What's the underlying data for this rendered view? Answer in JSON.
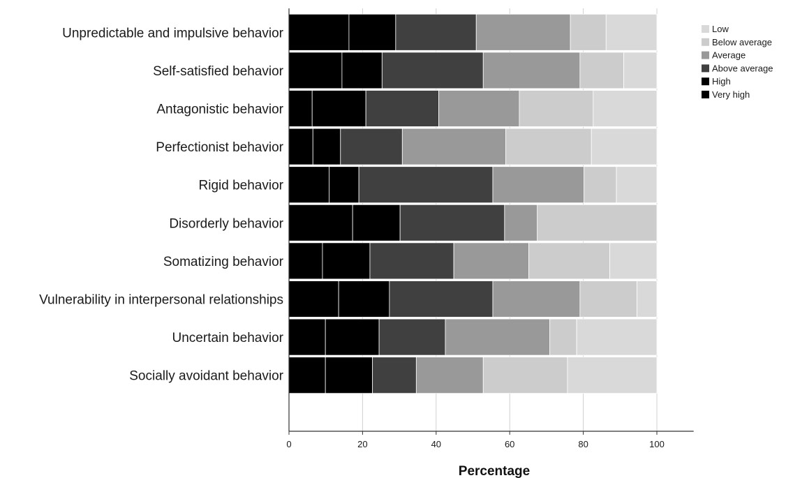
{
  "chart_data": {
    "type": "bar",
    "orientation": "horizontal",
    "stacked": true,
    "title": "",
    "xlabel": "Percentage",
    "ylabel": "",
    "xlim": [
      0,
      110
    ],
    "xticks": [
      0,
      20,
      40,
      60,
      80,
      100
    ],
    "grid": "vertical",
    "legend_position": "top-right",
    "categories": [
      "Unpredictable and impulsive behavior",
      "Self-satisfied behavior",
      "Antagonistic behavior",
      "Perfectionist behavior",
      "Rigid behavior",
      "Disorderly behavior",
      "Somatizing behavior",
      "Vulnerability in interpersonal relationships",
      "Uncertain behavior",
      "Socially avoidant behavior"
    ],
    "series": [
      {
        "name": "Very high",
        "color": "#000000",
        "values": [
          16.3,
          14.4,
          6.3,
          6.5,
          10.9,
          17.3,
          9.1,
          13.5,
          9.9,
          9.9
        ]
      },
      {
        "name": "High",
        "color": "#000000",
        "values": [
          12.7,
          10.9,
          14.6,
          7.5,
          8.1,
          12.9,
          12.9,
          13.8,
          14.6,
          12.8
        ]
      },
      {
        "name": "Above average",
        "color": "#404040",
        "values": [
          21.9,
          27.5,
          19.8,
          16.8,
          36.4,
          28.4,
          22.8,
          28.1,
          18.0,
          11.9
        ]
      },
      {
        "name": "Average",
        "color": "#999999",
        "values": [
          25.6,
          26.3,
          21.9,
          28.1,
          24.8,
          8.9,
          20.4,
          23.7,
          28.4,
          18.2
        ]
      },
      {
        "name": "Below average",
        "color": "#cccccc",
        "values": [
          9.7,
          11.9,
          20.1,
          23.3,
          8.8,
          32.5,
          22.0,
          15.5,
          7.3,
          22.9
        ]
      },
      {
        "name": "Low",
        "color": "#d9d9d9",
        "values": [
          13.8,
          9.0,
          17.3,
          17.8,
          11.0,
          0.0,
          12.8,
          5.4,
          21.8,
          24.3
        ]
      }
    ],
    "legend_order": [
      "Low",
      "Below average",
      "Average",
      "Above average",
      "High",
      "Very high"
    ]
  }
}
